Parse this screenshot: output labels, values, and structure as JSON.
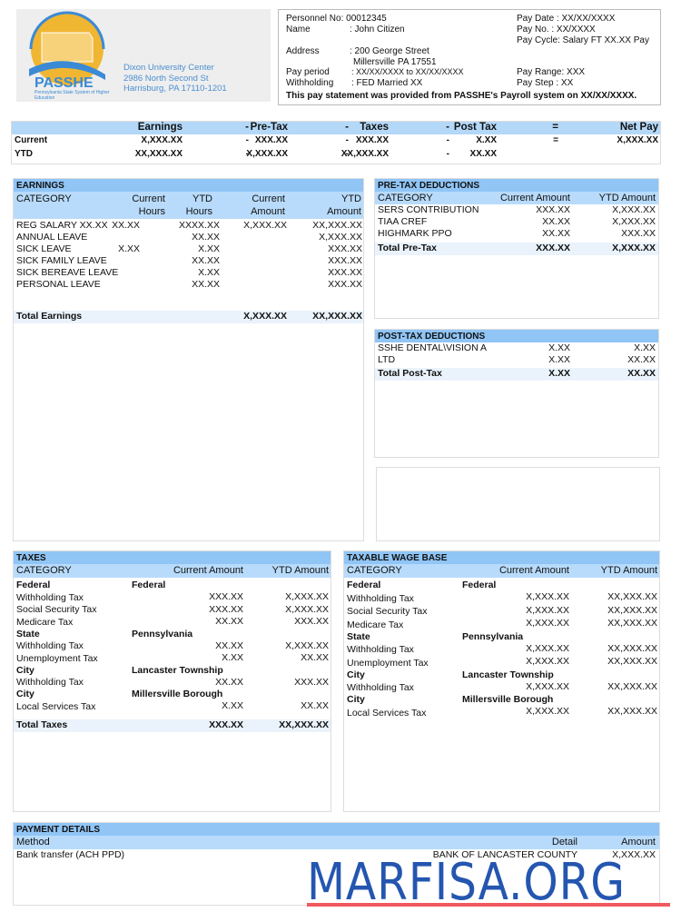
{
  "logo": {
    "text": "PASSHE",
    "subtitle": "Pennsylvania State System of Higher Education",
    "address": [
      "Dixon University Center",
      "2986 North Second St",
      "Harrisburg, PA  17110-1201"
    ],
    "colors": {
      "sun": "#f1b631",
      "arc": "#3b8ad6"
    }
  },
  "info": {
    "personnel": "Personnel No: 00012345",
    "name_label": "Name",
    "name": ": John Citizen",
    "address_label": "Address",
    "address1": ": 200 George Street",
    "address2": "Millersville PA  17551",
    "period_label": "Pay period",
    "period": ": XX/XX/XXXX to XX/XX/XXXX",
    "withholding_label": "Withholding",
    "withholding": ": FED Married XX",
    "pay_date": "Pay Date : XX/XX/XXXX",
    "pay_no": "Pay No.   : XX/XXXX",
    "pay_cycle": "Pay Cycle: Salary FT XX.XX Pay",
    "pay_range": "Pay Range: XXX",
    "pay_step": "Pay Step   : XX",
    "statement": "This pay statement was provided from PASSHE's Payroll system on XX/XX/XXXX."
  },
  "summary": {
    "headers": [
      "Earnings",
      "-",
      "Pre-Tax",
      "-",
      "Taxes",
      "-",
      "Post Tax",
      "=",
      "Net Pay"
    ],
    "rows": [
      {
        "label": "Current",
        "values": [
          "X,XXX.XX",
          "-",
          "XXX.XX",
          "-",
          "XXX.XX",
          "-",
          "X.XX",
          "=",
          "X,XXX.XX"
        ]
      },
      {
        "label": "YTD",
        "values": [
          "XX,XXX.XX",
          "-",
          "X,XXX.XX",
          "-",
          "XX,XXX.XX",
          "-",
          "XX.XX",
          "",
          ""
        ]
      }
    ]
  },
  "earnings": {
    "title": "EARNINGS",
    "headers": {
      "category": "CATEGORY",
      "cur_hours": [
        "Current",
        "Hours"
      ],
      "ytd_hours": [
        "YTD",
        "Hours"
      ],
      "cur_amount": [
        "Current",
        "Amount"
      ],
      "ytd_amount": [
        "YTD",
        "Amount"
      ]
    },
    "rows": [
      [
        "REG SALARY XX.XX",
        "XX.XX",
        "XXXX.XX",
        "X,XXX.XX",
        "XX,XXX.XX"
      ],
      [
        "ANNUAL LEAVE",
        "",
        "XX.XX",
        "",
        "X,XXX.XX"
      ],
      [
        "SICK LEAVE",
        "X.XX",
        "X.XX",
        "",
        "XXX.XX"
      ],
      [
        "SICK FAMILY LEAVE",
        "",
        "XX.XX",
        "",
        "XXX.XX"
      ],
      [
        "SICK BEREAVE LEAVE",
        "",
        "X.XX",
        "",
        "XXX.XX"
      ],
      [
        "PERSONAL LEAVE",
        "",
        "XX.XX",
        "",
        "XXX.XX"
      ]
    ],
    "total": [
      "Total Earnings",
      "X,XXX.XX",
      "XX,XXX.XX"
    ]
  },
  "pretax": {
    "title": "PRE-TAX DEDUCTIONS",
    "headers": [
      "CATEGORY",
      "Current Amount",
      "YTD Amount"
    ],
    "rows": [
      [
        "SERS CONTRIBUTION",
        "XXX.XX",
        "X,XXX.XX"
      ],
      [
        "TIAA CREF",
        "XX.XX",
        "X,XXX.XX"
      ],
      [
        "HIGHMARK PPO",
        "XX.XX",
        "XXX.XX"
      ]
    ],
    "total": [
      "Total Pre-Tax",
      "XXX.XX",
      "X,XXX.XX"
    ]
  },
  "posttax": {
    "title": "POST-TAX DEDUCTIONS",
    "rows": [
      [
        "SSHE DENTAL\\VISION A",
        "X.XX",
        "X.XX"
      ],
      [
        "LTD",
        "X.XX",
        "XX.XX"
      ]
    ],
    "total": [
      "Total Post-Tax",
      "X.XX",
      "XX.XX"
    ]
  },
  "taxes": {
    "title": "TAXES",
    "headers": [
      "CATEGORY",
      "Current Amount",
      "YTD Amount"
    ],
    "rows": [
      {
        "type": "group",
        "label": "Federal",
        "juris": "Federal"
      },
      {
        "label": "Withholding Tax",
        "cur": "XXX.XX",
        "ytd": "X,XXX.XX"
      },
      {
        "label": "Social Security Tax",
        "cur": "XXX.XX",
        "ytd": "X,XXX.XX"
      },
      {
        "label": "Medicare Tax",
        "cur": "XX.XX",
        "ytd": "XXX.XX"
      },
      {
        "type": "group",
        "label": "State",
        "juris": "Pennsylvania"
      },
      {
        "label": "Withholding Tax",
        "cur": "XX.XX",
        "ytd": "X,XXX.XX"
      },
      {
        "label": "Unemployment Tax",
        "cur": "X.XX",
        "ytd": "XX.XX"
      },
      {
        "type": "group",
        "label": "City",
        "juris": "Lancaster Township"
      },
      {
        "label": "Withholding Tax",
        "cur": "XX.XX",
        "ytd": "XXX.XX"
      },
      {
        "type": "group",
        "label": "City",
        "juris": "Millersville Borough"
      },
      {
        "label": "Local Services Tax",
        "cur": "X.XX",
        "ytd": "XX.XX"
      }
    ],
    "total": [
      "Total Taxes",
      "XXX.XX",
      "XX,XXX.XX"
    ]
  },
  "wagebase": {
    "title": "TAXABLE WAGE BASE",
    "headers": [
      "CATEGORY",
      "Current Amount",
      "YTD Amount"
    ],
    "rows": [
      {
        "type": "group",
        "label": "Federal",
        "juris": "Federal"
      },
      {
        "label": "Withholding Tax",
        "cur": "X,XXX.XX",
        "ytd": "XX,XXX.XX"
      },
      {
        "label": "Social Security Tax",
        "cur": "X,XXX.XX",
        "ytd": "XX,XXX.XX"
      },
      {
        "label": "Medicare Tax",
        "cur": "X,XXX.XX",
        "ytd": "XX,XXX.XX"
      },
      {
        "type": "group",
        "label": "State",
        "juris": "Pennsylvania"
      },
      {
        "label": "Withholding Tax",
        "cur": "X,XXX.XX",
        "ytd": "XX,XXX.XX"
      },
      {
        "label": "Unemployment Tax",
        "cur": "X,XXX.XX",
        "ytd": "XX,XXX.XX"
      },
      {
        "type": "group",
        "label": "City",
        "juris": "Lancaster Township"
      },
      {
        "label": "Withholding Tax",
        "cur": "X,XXX.XX",
        "ytd": "XX,XXX.XX"
      },
      {
        "type": "group",
        "label": "City",
        "juris": "Millersville Borough"
      },
      {
        "label": "Local Services Tax",
        "cur": "X,XXX.XX",
        "ytd": "XX,XXX.XX"
      }
    ]
  },
  "payment": {
    "title": "PAYMENT DETAILS",
    "headers": [
      "Method",
      "Detail",
      "Amount"
    ],
    "rows": [
      [
        "Bank transfer (ACH PPD)",
        "BANK OF LANCASTER COUNTY",
        "X,XXX.XX"
      ]
    ]
  },
  "watermark": {
    "text": "MARFISA.ORG",
    "color": "#2456b0",
    "underline_color": "#f0595f"
  }
}
